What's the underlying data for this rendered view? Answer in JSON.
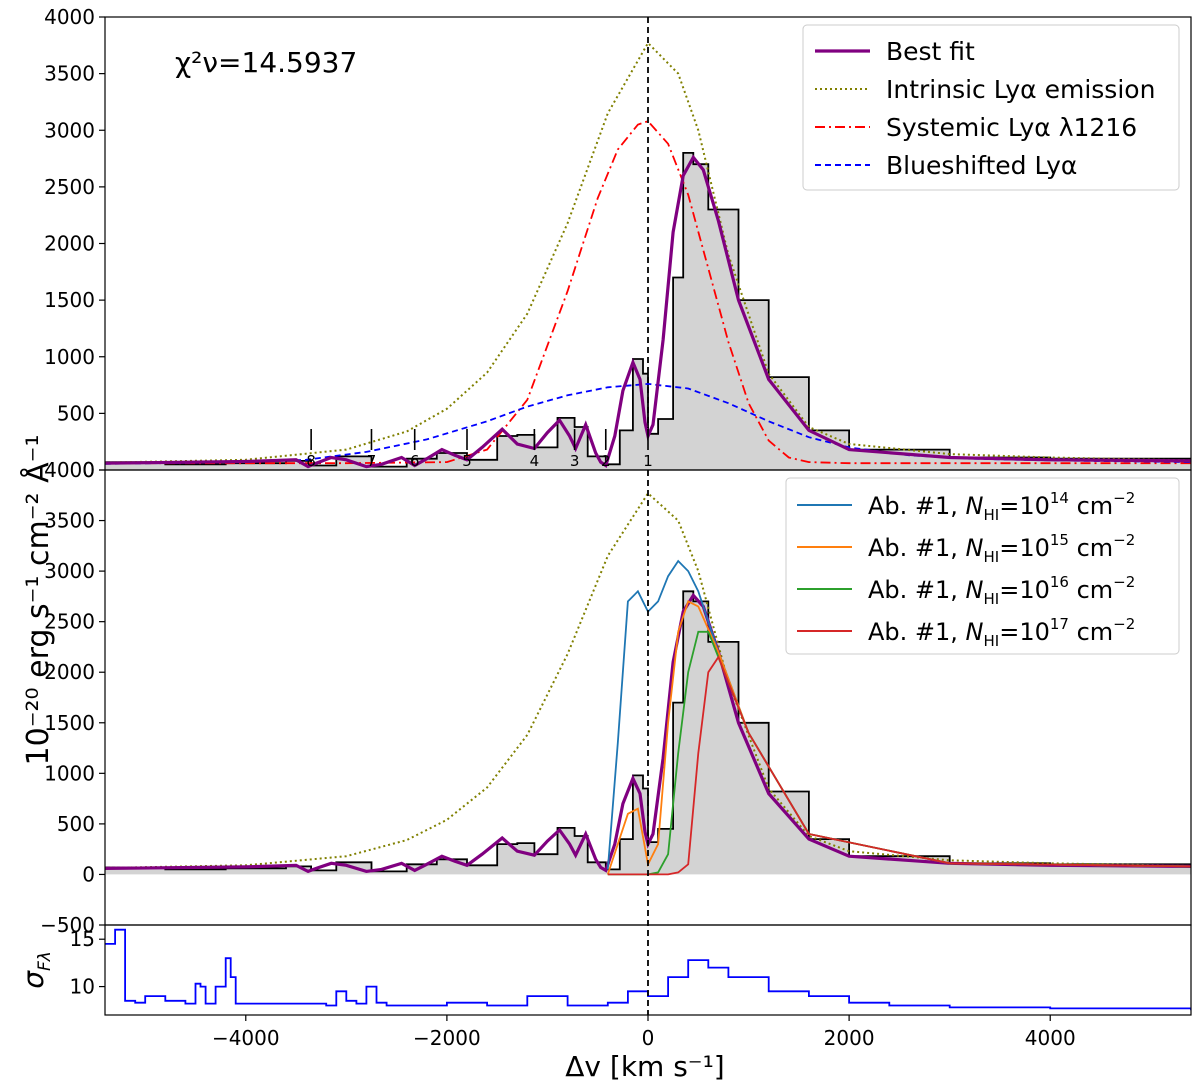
{
  "chart_data": {
    "type": "line",
    "x_axis": {
      "label": "Δv [km s⁻¹]",
      "range": [
        -5400,
        5400
      ],
      "ticks": [
        -4000,
        -2000,
        0,
        2000,
        4000
      ],
      "tick_labels": [
        "−4000",
        "−2000",
        "0",
        "2000",
        "4000"
      ],
      "zero_line": 0
    },
    "y_label": "10⁻²⁰ erg s⁻¹ cm⁻² Å⁻¹",
    "panels": [
      {
        "id": "top",
        "ylim": [
          0,
          4000
        ],
        "yticks": [
          0,
          500,
          1000,
          1500,
          2000,
          2500,
          3000,
          3500,
          4000
        ],
        "ytick_labels": [
          "0",
          "500",
          "1000",
          "1500",
          "2000",
          "2500",
          "3000",
          "3500",
          "4000"
        ],
        "annotation": "χ²ν=14.5937",
        "legend_position": "top-right",
        "legend": [
          {
            "label": "Best fit",
            "color": "#800080",
            "style": "solid-thick"
          },
          {
            "label": "Intrinsic Lyα emission",
            "color": "#808000",
            "style": "dotted"
          },
          {
            "label": "Systemic Lyα λ1216",
            "color": "#ff0000",
            "style": "dashdot"
          },
          {
            "label": "Blueshifted Lyα",
            "color": "#0000ff",
            "style": "dashed"
          }
        ],
        "absorber_markers": [
          {
            "label": "8",
            "x": -3350
          },
          {
            "label": "7",
            "x": -2750
          },
          {
            "label": "6",
            "x": -2320
          },
          {
            "label": "5",
            "x": -1800
          },
          {
            "label": "4",
            "x": -1130
          },
          {
            "label": "3",
            "x": -730
          },
          {
            "label": "2",
            "x": -420
          },
          {
            "label": "1",
            "x": 0
          }
        ],
        "series": [
          {
            "name": "Intrinsic Lyα emission",
            "x": [
              -5400,
              -4000,
              -3000,
              -2400,
              -2000,
              -1600,
              -1200,
              -800,
              -400,
              0,
              300,
              500,
              800,
              1200,
              1600,
              2000,
              3000,
              4000,
              5400
            ],
            "y": [
              65,
              90,
              180,
              340,
              540,
              860,
              1380,
              2180,
              3150,
              3770,
              3500,
              3000,
              1900,
              850,
              380,
              230,
              140,
              110,
              85
            ]
          },
          {
            "name": "Systemic Lyα λ1216",
            "x": [
              -5400,
              -3000,
              -2000,
              -1600,
              -1200,
              -800,
              -500,
              -300,
              -100,
              0,
              200,
              400,
              600,
              800,
              1000,
              1200,
              1400,
              1600,
              2000,
              3000,
              5400
            ],
            "y": [
              60,
              60,
              70,
              180,
              620,
              1580,
              2400,
              2830,
              3050,
              3080,
              2880,
              2430,
              1780,
              1130,
              590,
              260,
              110,
              70,
              60,
              60,
              60
            ]
          },
          {
            "name": "Blueshifted Lyα",
            "x": [
              -5400,
              -4000,
              -3400,
              -2800,
              -2200,
              -1600,
              -1200,
              -800,
              -400,
              0,
              400,
              800,
              1200,
              1600,
              2000,
              2600,
              3200,
              4000,
              5400
            ],
            "y": [
              55,
              70,
              90,
              160,
              270,
              430,
              560,
              660,
              730,
              760,
              720,
              590,
              430,
              290,
              200,
              130,
              100,
              85,
              70
            ]
          },
          {
            "name": "Best fit",
            "x": [
              -5400,
              -4000,
              -3500,
              -3380,
              -3300,
              -3150,
              -3000,
              -2800,
              -2650,
              -2450,
              -2320,
              -2200,
              -2050,
              -1920,
              -1800,
              -1650,
              -1450,
              -1300,
              -1130,
              -1000,
              -880,
              -780,
              -720,
              -620,
              -520,
              -470,
              -420,
              -330,
              -250,
              -150,
              -80,
              -30,
              0,
              50,
              150,
              250,
              350,
              450,
              550,
              700,
              900,
              1200,
              1600,
              2000,
              3000,
              4000,
              5400
            ],
            "y": [
              60,
              75,
              90,
              30,
              60,
              110,
              90,
              30,
              50,
              110,
              40,
              100,
              180,
              130,
              90,
              200,
              360,
              230,
              190,
              330,
              440,
              300,
              190,
              400,
              150,
              70,
              40,
              300,
              700,
              950,
              800,
              420,
              300,
              400,
              1150,
              2100,
              2600,
              2760,
              2650,
              2200,
              1500,
              800,
              350,
              180,
              110,
              90,
              80
            ]
          },
          {
            "name": "Observed spectrum",
            "x": [
              -5400,
              -4800,
              -4200,
              -3600,
              -3350,
              -3100,
              -2750,
              -2400,
              -2100,
              -1800,
              -1500,
              -1300,
              -1130,
              -900,
              -730,
              -600,
              -420,
              -280,
              -150,
              -50,
              0,
              100,
              250,
              350,
              450,
              600,
              900,
              1200,
              1600,
              2000,
              3000,
              4000,
              5400
            ],
            "y": [
              70,
              50,
              60,
              80,
              40,
              120,
              30,
              100,
              150,
              90,
              300,
              310,
              200,
              460,
              380,
              120,
              50,
              350,
              980,
              850,
              320,
              450,
              1700,
              2800,
              2700,
              2300,
              1500,
              820,
              350,
              180,
              110,
              100,
              90
            ]
          }
        ]
      },
      {
        "id": "middle",
        "ylim": [
          -500,
          4000
        ],
        "yticks": [
          -500,
          0,
          500,
          1000,
          1500,
          2000,
          2500,
          3000,
          3500,
          4000
        ],
        "ytick_labels": [
          "−500",
          "0",
          "500",
          "1000",
          "1500",
          "2000",
          "2500",
          "3000",
          "3500",
          "4000"
        ],
        "legend_position": "top-right",
        "legend": [
          {
            "label": "Ab. #1, N_HI=10¹⁴ cm⁻²",
            "prefix": "Ab. #1, ",
            "sym": "N",
            "sub": "HI",
            "eq": "=10",
            "exp": "14",
            "unit": " cm",
            "uexp": "−2",
            "color": "#1f77b4"
          },
          {
            "label": "Ab. #1, N_HI=10¹⁵ cm⁻²",
            "prefix": "Ab. #1, ",
            "sym": "N",
            "sub": "HI",
            "eq": "=10",
            "exp": "15",
            "unit": " cm",
            "uexp": "−2",
            "color": "#ff7f0e"
          },
          {
            "label": "Ab. #1, N_HI=10¹⁶ cm⁻²",
            "prefix": "Ab. #1, ",
            "sym": "N",
            "sub": "HI",
            "eq": "=10",
            "exp": "16",
            "unit": " cm",
            "uexp": "−2",
            "color": "#2ca02c"
          },
          {
            "label": "Ab. #1, N_HI=10¹⁷ cm⁻²",
            "prefix": "Ab. #1, ",
            "sym": "N",
            "sub": "HI",
            "eq": "=10",
            "exp": "17",
            "unit": " cm",
            "uexp": "−2",
            "color": "#d62728"
          }
        ],
        "series": [
          {
            "name": "Ab. #1, N_HI=10¹⁴ cm⁻²",
            "x": [
              -400,
              -300,
              -200,
              -100,
              0,
              100,
              200,
              300,
              400,
              500,
              700,
              1000,
              1600,
              3000,
              5400
            ],
            "y": [
              50,
              1300,
              2700,
              2800,
              2600,
              2700,
              2950,
              3100,
              3000,
              2800,
              2200,
              1400,
              400,
              110,
              80
            ]
          },
          {
            "name": "Ab. #1, N_HI=10¹⁵ cm⁻²",
            "x": [
              -400,
              -300,
              -200,
              -100,
              0,
              100,
              200,
              300,
              400,
              500,
              700,
              1000,
              1600,
              3000,
              5400
            ],
            "y": [
              0,
              300,
              600,
              650,
              100,
              300,
              1500,
              2400,
              2700,
              2650,
              2200,
              1400,
              400,
              110,
              80
            ]
          },
          {
            "name": "Ab. #1, N_HI=10¹⁶ cm⁻²",
            "x": [
              -400,
              -200,
              0,
              100,
              200,
              300,
              400,
              500,
              600,
              800,
              1000,
              1600,
              3000,
              5400
            ],
            "y": [
              0,
              0,
              0,
              20,
              200,
              1200,
              2000,
              2400,
              2400,
              1900,
              1400,
              400,
              110,
              80
            ]
          },
          {
            "name": "Ab. #1, N_HI=10¹⁷ cm⁻²",
            "x": [
              -400,
              -200,
              0,
              200,
              300,
              400,
              500,
              600,
              700,
              800,
              1000,
              1600,
              3000,
              5400
            ],
            "y": [
              0,
              0,
              0,
              0,
              20,
              100,
              1200,
              2000,
              2150,
              1900,
              1400,
              400,
              110,
              80
            ]
          }
        ]
      },
      {
        "id": "bottom",
        "ylabel": "σ_Fλ",
        "ylim": [
          7,
          16.5
        ],
        "yticks": [
          10,
          15
        ],
        "ytick_labels": [
          "10",
          "15"
        ],
        "series": [
          {
            "name": "sigma",
            "x": [
              -5400,
              -5300,
              -5200,
              -5100,
              -5000,
              -4800,
              -4600,
              -4500,
              -4450,
              -4400,
              -4300,
              -4200,
              -4150,
              -4100,
              -4000,
              -3800,
              -3400,
              -3200,
              -3100,
              -3000,
              -2900,
              -2800,
              -2700,
              -2600,
              -2400,
              -2000,
              -1600,
              -1200,
              -800,
              -400,
              -200,
              0,
              200,
              400,
              600,
              800,
              1200,
              1600,
              2000,
              2400,
              3000,
              4000,
              5400
            ],
            "y": [
              14.5,
              16,
              8.5,
              8.3,
              9,
              8.5,
              8.2,
              10.3,
              10,
              8.2,
              10,
              13,
              11,
              8.2,
              8.2,
              8.2,
              8.2,
              8,
              9.5,
              8.5,
              8.2,
              10,
              8.3,
              8,
              8,
              8.3,
              8,
              9,
              8,
              8.3,
              9.5,
              9,
              11,
              12.8,
              12,
              11,
              9.5,
              9,
              8.3,
              8,
              7.8,
              7.7,
              7.5
            ]
          }
        ]
      }
    ]
  }
}
